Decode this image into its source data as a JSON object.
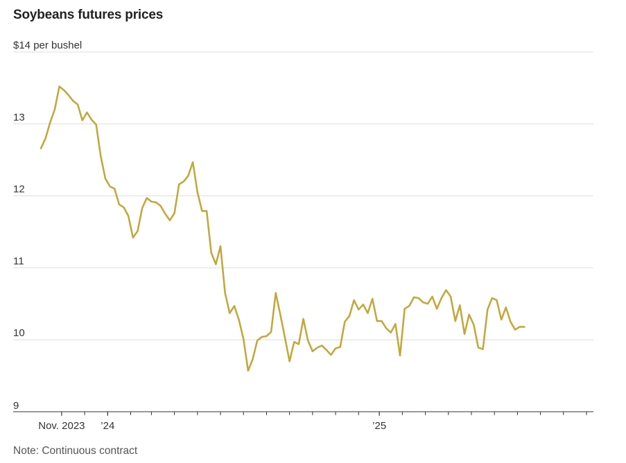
{
  "title": "Soybeans futures prices",
  "note": "Note: Continuous contract",
  "colors": {
    "line": "#c2a83e",
    "grid": "#dddddd",
    "axis": "#333333"
  },
  "chart_data": {
    "type": "line",
    "title": "Soybeans futures prices",
    "ylabel": "$14 per bushel",
    "ylim": [
      9,
      14
    ],
    "yticks": [
      {
        "value": 14,
        "label": "$14 per bushel"
      },
      {
        "value": 13,
        "label": "13"
      },
      {
        "value": 12,
        "label": "12"
      },
      {
        "value": 11,
        "label": "11"
      },
      {
        "value": 10,
        "label": "10"
      },
      {
        "value": 9,
        "label": "9"
      }
    ],
    "xlim": [
      0,
      120
    ],
    "xticks": [
      {
        "value": 4.5,
        "label": "Nov. 2023"
      },
      {
        "value": 14.5,
        "label": "’24"
      },
      {
        "value": 73.5,
        "label": "’25"
      }
    ],
    "minor_xticks": [
      4.5,
      9.5,
      14.5,
      19.5,
      24,
      29,
      34,
      39,
      44,
      49,
      54,
      59,
      64,
      69,
      73.5,
      78.5,
      83.5,
      88.5,
      93.5,
      98.5,
      103.5,
      108.5,
      113.5,
      118.5
    ],
    "series": [
      {
        "name": "Soybeans futures",
        "values": [
          12.66,
          12.8,
          13.02,
          13.2,
          13.52,
          13.47,
          13.4,
          13.32,
          13.27,
          13.05,
          13.16,
          13.06,
          12.99,
          12.55,
          12.24,
          12.13,
          12.1,
          11.88,
          11.84,
          11.72,
          11.42,
          11.51,
          11.83,
          11.97,
          11.92,
          11.91,
          11.86,
          11.75,
          11.66,
          11.76,
          12.16,
          12.2,
          12.28,
          12.47,
          12.05,
          11.79,
          11.79,
          11.21,
          11.05,
          11.3,
          10.65,
          10.37,
          10.47,
          10.28,
          10.01,
          9.57,
          9.73,
          9.99,
          10.04,
          10.05,
          10.11,
          10.65,
          10.35,
          10.03,
          9.7,
          9.97,
          9.94,
          10.29,
          9.99,
          9.84,
          9.89,
          9.92,
          9.86,
          9.79,
          9.88,
          9.9,
          10.25,
          10.33,
          10.55,
          10.42,
          10.49,
          10.37,
          10.57,
          10.26,
          10.26,
          10.16,
          10.1,
          10.22,
          9.78,
          10.43,
          10.47,
          10.59,
          10.58,
          10.52,
          10.5,
          10.6,
          10.43,
          10.58,
          10.69,
          10.6,
          10.26,
          10.48,
          10.08,
          10.35,
          10.21,
          9.89,
          9.87,
          10.42,
          10.58,
          10.55,
          10.28,
          10.45,
          10.25,
          10.14,
          10.18,
          10.18
        ]
      }
    ]
  }
}
